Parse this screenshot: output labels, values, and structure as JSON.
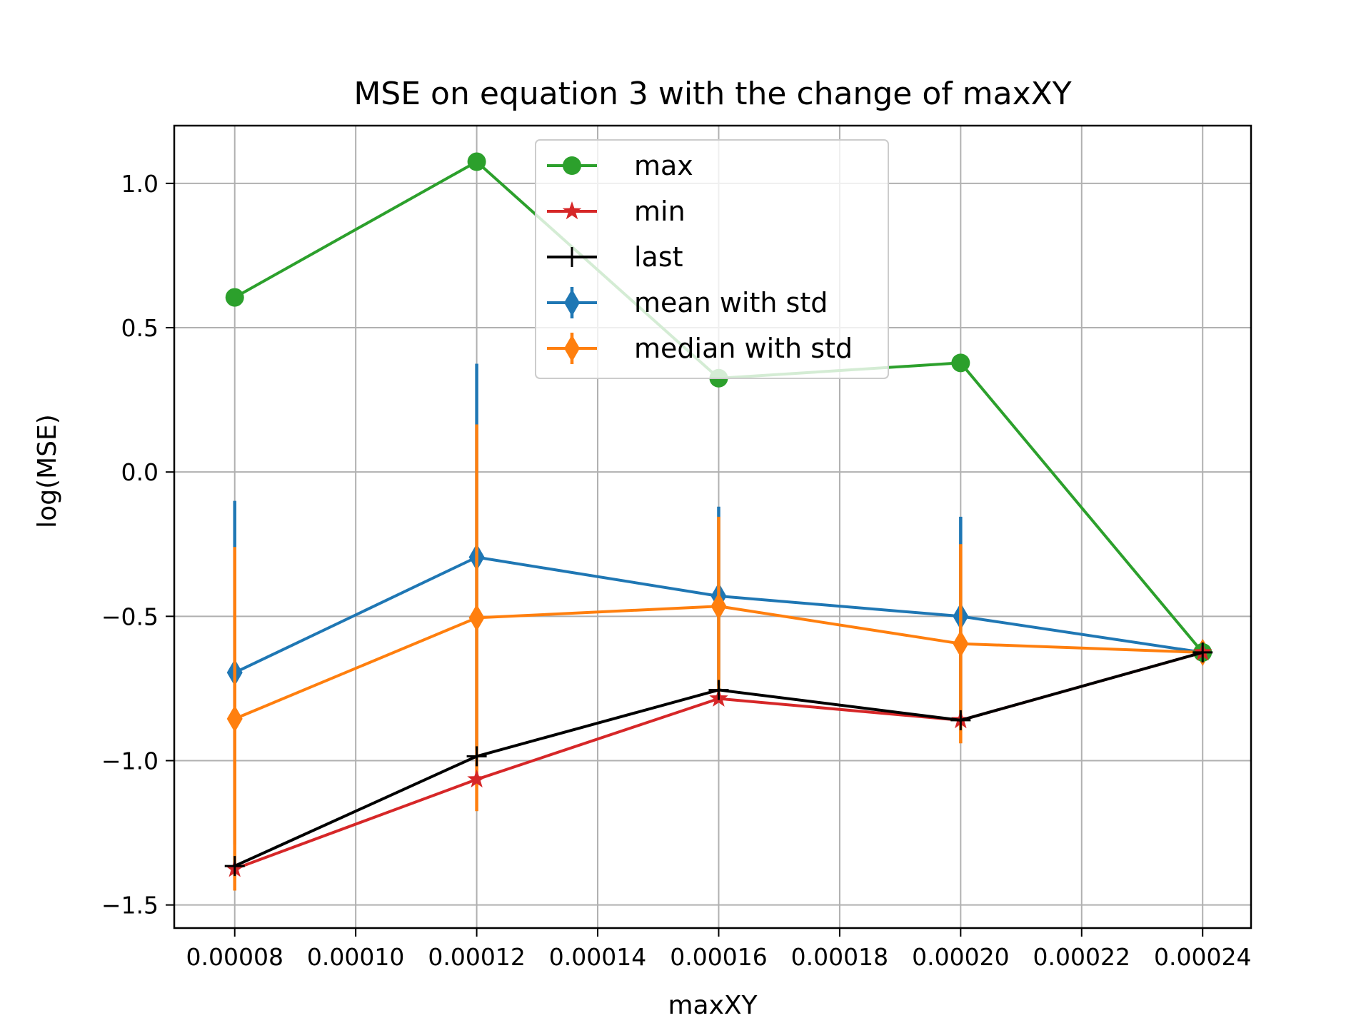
{
  "chart_data": {
    "type": "line",
    "title": "MSE on equation 3 with the change of maxXY",
    "xlabel": "maxXY",
    "ylabel": "log(MSE)",
    "xlim": [
      7e-05,
      0.000248
    ],
    "ylim": [
      -1.58,
      1.2
    ],
    "xticks": [
      {
        "value": 8e-05,
        "label": "0.00008"
      },
      {
        "value": 0.0001,
        "label": "0.00010"
      },
      {
        "value": 0.00012,
        "label": "0.00012"
      },
      {
        "value": 0.00014,
        "label": "0.00014"
      },
      {
        "value": 0.00016,
        "label": "0.00016"
      },
      {
        "value": 0.00018,
        "label": "0.00018"
      },
      {
        "value": 0.0002,
        "label": "0.00020"
      },
      {
        "value": 0.00022,
        "label": "0.00022"
      },
      {
        "value": 0.00024,
        "label": "0.00024"
      }
    ],
    "yticks": [
      {
        "value": 1.0,
        "label": "1.0"
      },
      {
        "value": 0.5,
        "label": "0.5"
      },
      {
        "value": 0.0,
        "label": "0.0"
      },
      {
        "value": -0.5,
        "label": "−0.5"
      },
      {
        "value": -1.0,
        "label": "−1.0"
      },
      {
        "value": -1.5,
        "label": "−1.5"
      }
    ],
    "grid": true,
    "legend_position": "upper-center",
    "x": [
      8e-05,
      0.00012,
      0.00016,
      0.0002,
      0.00024
    ],
    "series": [
      {
        "name": "max",
        "color": "#2ca02c",
        "marker": "circle",
        "values": [
          0.605,
          1.075,
          0.325,
          0.378,
          -0.625
        ]
      },
      {
        "name": "min",
        "color": "#d62728",
        "marker": "star",
        "values": [
          -1.375,
          -1.065,
          -0.785,
          -0.86,
          -0.625
        ]
      },
      {
        "name": "last",
        "color": "#000000",
        "marker": "plus",
        "values": [
          -1.365,
          -0.985,
          -0.755,
          -0.86,
          -0.625
        ]
      },
      {
        "name": "mean with std",
        "color": "#1f77b4",
        "marker": "diamond",
        "values": [
          -0.695,
          -0.295,
          -0.43,
          -0.5,
          -0.625
        ],
        "std": [
          0.595,
          0.67,
          0.31,
          0.345,
          0.0
        ]
      },
      {
        "name": "median with std",
        "color": "#ff7f0e",
        "marker": "diamond",
        "values": [
          -0.855,
          -0.505,
          -0.465,
          -0.595,
          -0.625
        ],
        "std": [
          0.595,
          0.67,
          0.31,
          0.345,
          0.0
        ]
      }
    ]
  }
}
